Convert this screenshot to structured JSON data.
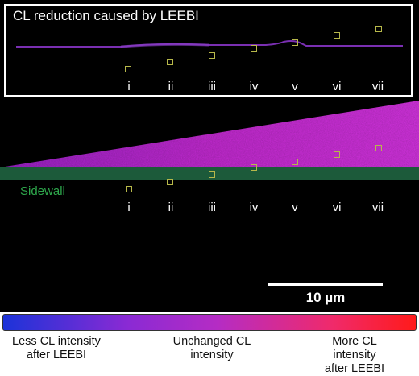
{
  "inset": {
    "title": "CL reduction caused by LEEBI",
    "labels": [
      "i",
      "ii",
      "iii",
      "iv",
      "v",
      "vi",
      "vii"
    ]
  },
  "main": {
    "labels": [
      "i",
      "ii",
      "iii",
      "iv",
      "v",
      "vi",
      "vii"
    ],
    "sidewall_label": "Sidewall"
  },
  "scale_bar": {
    "label": "10 µm"
  },
  "colorbar": {
    "left_label": "Less CL intensity\nafter LEEBI",
    "center_label": "Unchanged CL\nintensity",
    "right_label": "More CL intensity\nafter LEEBI"
  },
  "colors": {
    "less": "#1c33d8",
    "unchanged": "#b52cc4",
    "more": "#ff1a1a",
    "sidewall": "#1c5a3a",
    "marker": "#b7b84a"
  }
}
